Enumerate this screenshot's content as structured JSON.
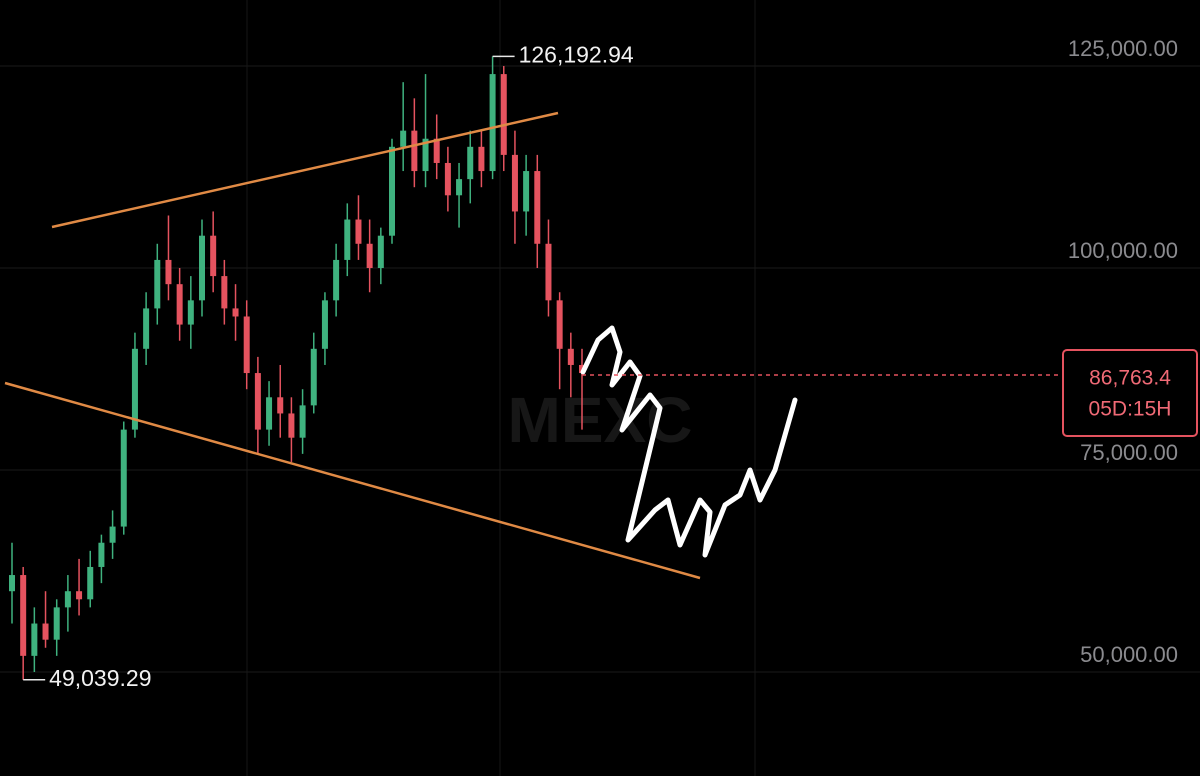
{
  "chart_data": {
    "type": "candlestick",
    "watermark": "MEXC",
    "up_color": "#3fb27f",
    "down_color": "#e5535f",
    "ylim": [
      37130,
      133170
    ],
    "yticks": [
      {
        "value": 125000,
        "label": "125,000.00"
      },
      {
        "value": 100000,
        "label": "100,000.00"
      },
      {
        "value": 75000,
        "label": "75,000.00"
      },
      {
        "value": 50000,
        "label": "50,000.00"
      }
    ],
    "grid": true,
    "open": [
      60000,
      62000,
      52000,
      56000,
      54000,
      58000,
      60000,
      59000,
      63000,
      66000,
      68000,
      80000,
      90000,
      95000,
      101000,
      98000,
      93000,
      96000,
      104000,
      99000,
      95000,
      94000,
      87000,
      80000,
      84000,
      82000,
      79000,
      83000,
      90000,
      96000,
      101000,
      106000,
      103000,
      100000,
      104000,
      115000,
      117000,
      112000,
      116000,
      113000,
      109000,
      111000,
      115000,
      112000,
      124000,
      114000,
      107000,
      112000,
      103000,
      96000,
      90000,
      88000
    ],
    "high": [
      66000,
      63000,
      58000,
      60000,
      59000,
      62000,
      64000,
      65000,
      67000,
      70000,
      81000,
      92000,
      97000,
      103000,
      106500,
      100000,
      99000,
      106000,
      107000,
      101000,
      98000,
      96000,
      89000,
      86000,
      88000,
      84000,
      85000,
      92000,
      97000,
      103000,
      108000,
      109000,
      106000,
      105000,
      116000,
      123000,
      121000,
      124000,
      119000,
      115000,
      113000,
      117000,
      117000,
      126192.94,
      125000,
      117000,
      114000,
      114000,
      106000,
      97000,
      92000,
      90000
    ],
    "low": [
      56000,
      49039.29,
      50000,
      53000,
      52000,
      55000,
      57000,
      58000,
      61000,
      64000,
      67000,
      79000,
      88000,
      93000,
      96000,
      91000,
      90000,
      94000,
      97000,
      93000,
      91000,
      85000,
      77000,
      78000,
      79000,
      76000,
      77000,
      82000,
      88000,
      94000,
      99000,
      101000,
      97000,
      98000,
      103000,
      112000,
      110000,
      110000,
      111000,
      107000,
      105000,
      108000,
      110000,
      111000,
      112000,
      103000,
      104000,
      100000,
      94000,
      85000,
      84000,
      80000
    ],
    "close": [
      62000,
      52000,
      56000,
      54000,
      58000,
      60000,
      59000,
      63000,
      66000,
      68000,
      80000,
      90000,
      95000,
      101000,
      98000,
      93000,
      96000,
      104000,
      99000,
      95000,
      94000,
      87000,
      80000,
      84000,
      82000,
      79000,
      83000,
      90000,
      96000,
      101000,
      106000,
      103000,
      100000,
      104000,
      115000,
      117000,
      112000,
      116000,
      113000,
      109000,
      111000,
      115000,
      112000,
      124000,
      114000,
      107000,
      112000,
      103000,
      96000,
      90000,
      88000,
      87000
    ],
    "annotations": [
      {
        "value": 126192.94,
        "label": "126,192.94"
      },
      {
        "value": 49039.29,
        "label": "49,039.29"
      }
    ],
    "last_price": {
      "value": 86763.4,
      "label": "86,763.4"
    },
    "countdown": "05D:15H"
  }
}
